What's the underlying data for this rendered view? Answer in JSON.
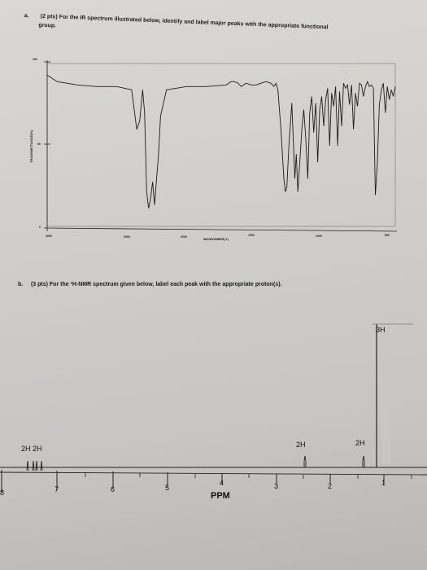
{
  "question_a": {
    "number": "a.",
    "text_line1": "(2 pts) For the IR spectrum illustrated below, identify and label major peaks with the appropriate functional",
    "text_line2": "group."
  },
  "question_b": {
    "number": "b.",
    "text": "(3 pts) For the ¹H-NMR spectrum given below, label each peak with the appropriate proton(s)."
  },
  "chart_data": [
    {
      "type": "line",
      "xlabel": "WAVENUMBER(-1)",
      "ylabel": "TRANSMITTANCE(%)",
      "x_ticks": [
        "4000",
        "3000",
        "2000",
        "1500",
        "1000",
        "500"
      ],
      "y_ticks": [
        "100",
        "50",
        "0"
      ],
      "xlim": [
        4000,
        500
      ],
      "ylim": [
        0,
        100
      ],
      "x": [
        4000,
        3900,
        3700,
        3500,
        3300,
        3150,
        3100,
        3070,
        3040,
        3020,
        3000,
        2980,
        2960,
        2940,
        2920,
        2900,
        2880,
        2860,
        2800,
        2700,
        2600,
        2400,
        2200,
        2150,
        2120,
        2080,
        2050,
        2000,
        1950,
        1900,
        1850,
        1800,
        1750,
        1720,
        1700,
        1680,
        1650,
        1620,
        1605,
        1590,
        1570,
        1540,
        1510,
        1495,
        1480,
        1460,
        1440,
        1420,
        1400,
        1380,
        1360,
        1340,
        1320,
        1300,
        1280,
        1260,
        1240,
        1220,
        1200,
        1180,
        1160,
        1140,
        1120,
        1100,
        1080,
        1060,
        1040,
        1020,
        1000,
        980,
        960,
        940,
        920,
        900,
        880,
        860,
        840,
        820,
        800,
        780,
        760,
        740,
        720,
        700,
        680,
        660,
        640,
        620,
        600,
        580,
        560,
        540,
        520,
        500
      ],
      "y": [
        93,
        89,
        87,
        86,
        86,
        84,
        60,
        65,
        84,
        70,
        22,
        12,
        18,
        28,
        14,
        30,
        45,
        68,
        84,
        85,
        86,
        86,
        87,
        89,
        89,
        88,
        86,
        88,
        87,
        87,
        88,
        89,
        88,
        86,
        88,
        84,
        60,
        30,
        22,
        25,
        50,
        76,
        30,
        45,
        22,
        40,
        60,
        72,
        55,
        30,
        70,
        80,
        58,
        76,
        40,
        72,
        80,
        62,
        78,
        85,
        50,
        82,
        74,
        86,
        50,
        83,
        62,
        88,
        85,
        87,
        75,
        87,
        60,
        82,
        74,
        88,
        87,
        80,
        86,
        89,
        86,
        87,
        85,
        20,
        40,
        75,
        84,
        88,
        70,
        86,
        78,
        84,
        80,
        86
      ]
    }
  ],
  "nmr": {
    "labels": [
      "3H",
      "2H",
      "2H",
      "2H 2H"
    ],
    "ppm_ticks": [
      "8",
      "7",
      "6",
      "5",
      "4",
      "3",
      "2",
      "1"
    ],
    "xlabel": "PPM"
  }
}
